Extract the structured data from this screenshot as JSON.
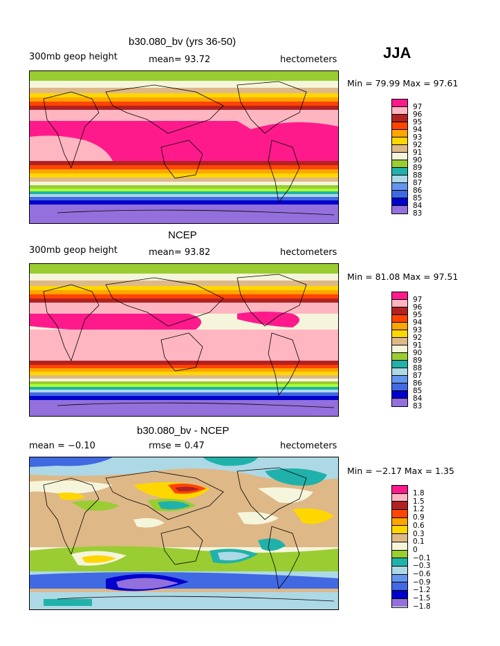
{
  "season": "JJA",
  "units": "hectometers",
  "panels": [
    {
      "title": "b30.080_bv (yrs 36-50)",
      "left_label": "300mb geop height",
      "mid_label": "mean=  93.72",
      "right_label": "hectometers",
      "minmax": "Min =  79.99 Max =  97.61",
      "levels": [
        "97",
        "96",
        "95",
        "94",
        "93",
        "92",
        "91",
        "90",
        "89",
        "88",
        "87",
        "86",
        "85",
        "84",
        "83"
      ]
    },
    {
      "title": "NCEP",
      "left_label": "300mb geop height",
      "mid_label": "mean=  93.82",
      "right_label": "hectometers",
      "minmax": "Min =  81.08 Max =  97.51",
      "levels": [
        "97",
        "96",
        "95",
        "94",
        "93",
        "92",
        "91",
        "90",
        "89",
        "88",
        "87",
        "86",
        "85",
        "84",
        "83"
      ]
    },
    {
      "title": "b30.080_bv - NCEP",
      "left_label": "mean =  −0.10",
      "mid_label": "rmse =   0.47",
      "right_label": "hectometers",
      "minmax": "Min =  −2.17 Max =   1.35",
      "levels": [
        "1.8",
        "1.5",
        "1.2",
        "0.9",
        "0.6",
        "0.3",
        "0.1",
        "0",
        "−0.1",
        "−0.3",
        "−0.6",
        "−0.9",
        "−1.2",
        "−1.5",
        "−1.8"
      ]
    }
  ],
  "colors": {
    "scale": [
      "#ff1a8c",
      "#ffb6c1",
      "#b22222",
      "#ff4500",
      "#ffa500",
      "#ffd700",
      "#deb887",
      "#f5f5dc",
      "#9acd32",
      "#adff2f",
      "#20b2aa",
      "#add8e6",
      "#4169e1",
      "#0000cd",
      "#9370db"
    ],
    "diff_scale": [
      "#ff1a8c",
      "#ffb6c1",
      "#b22222",
      "#ff4500",
      "#ffa500",
      "#ffd700",
      "#deb887",
      "#f5f5dc",
      "#9acd32",
      "#adff2f",
      "#20b2aa",
      "#add8e6",
      "#4169e1",
      "#0000cd",
      "#9370db"
    ]
  }
}
